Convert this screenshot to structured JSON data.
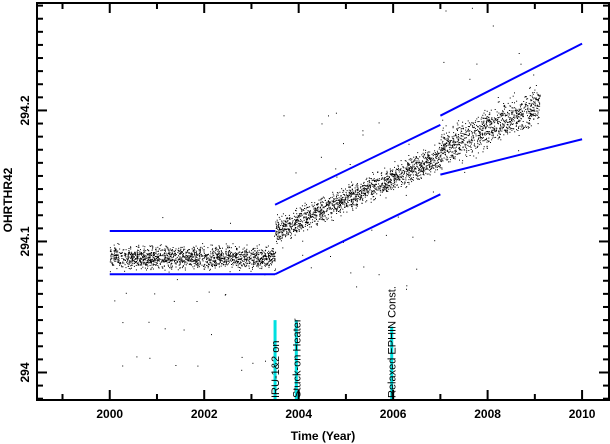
{
  "chart_data": {
    "type": "scatter",
    "title": "",
    "xlabel": "Time (Year)",
    "ylabel": "OHRTHR42",
    "xlim": [
      1998.46,
      2010.57
    ],
    "ylim": [
      293.979,
      294.282
    ],
    "x_ticks": [
      2000,
      2002,
      2004,
      2006,
      2008,
      2010
    ],
    "x_tick_labels": [
      "2000",
      "2002",
      "2004",
      "2006",
      "2008",
      "2010"
    ],
    "y_ticks": [
      294,
      294.1,
      294.2
    ],
    "y_tick_labels": [
      "294",
      "294.1",
      "294.2"
    ],
    "grid": false,
    "scatter_segments": [
      {
        "x_start": 2000.0,
        "x_end": 2003.5,
        "y_center_start": 294.088,
        "y_center_end": 294.088,
        "spread": 0.012,
        "outlier_low": 294.0,
        "outlier_high": 294.12
      },
      {
        "x_start": 2003.5,
        "x_end": 2007.0,
        "y_center_start": 294.108,
        "y_center_end": 294.165,
        "spread": 0.014,
        "outlier_low": 294.06,
        "outlier_high": 294.2
      },
      {
        "x_start": 2007.0,
        "x_end": 2009.1,
        "y_center_start": 294.17,
        "y_center_end": 294.205,
        "spread": 0.02,
        "outlier_low": 294.14,
        "outlier_high": 294.28
      }
    ],
    "limit_lines": [
      {
        "name": "upper-1",
        "x": [
          2000.0,
          2003.5
        ],
        "y": [
          294.108,
          294.108
        ]
      },
      {
        "name": "lower-1",
        "x": [
          2000.0,
          2003.5
        ],
        "y": [
          294.075,
          294.075
        ]
      },
      {
        "name": "upper-2",
        "x": [
          2003.5,
          2007.0
        ],
        "y": [
          294.128,
          294.189
        ]
      },
      {
        "name": "lower-2",
        "x": [
          2003.5,
          2007.0
        ],
        "y": [
          294.075,
          294.136
        ]
      },
      {
        "name": "upper-3",
        "x": [
          2007.0,
          2010.0
        ],
        "y": [
          294.196,
          294.251
        ]
      },
      {
        "name": "lower-3",
        "x": [
          2007.0,
          2010.0
        ],
        "y": [
          294.151,
          294.178
        ]
      }
    ],
    "events": [
      {
        "label": "IRU-1&2 on",
        "x": 2003.5,
        "y_top": 294.04
      },
      {
        "label": "Stuck-on Heater",
        "x": 2003.95,
        "y_top": 294.04
      },
      {
        "label": "Relaxed EPHIN Const.",
        "x": 2005.97,
        "y_top": 294.035
      }
    ],
    "colors": {
      "data": "#000000",
      "limit": "#0000ff",
      "event": "#00e0e0",
      "axis": "#000000"
    }
  }
}
